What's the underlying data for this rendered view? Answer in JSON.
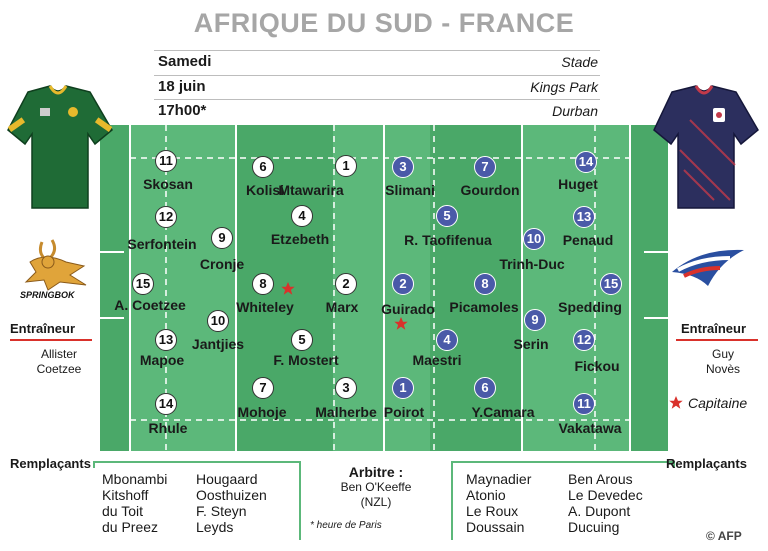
{
  "title": "AFRIQUE DU SUD - FRANCE",
  "info": [
    {
      "left": "Samedi",
      "right": "Stade"
    },
    {
      "left": "18 juin",
      "right": "Kings Park"
    },
    {
      "left": "17h00*",
      "right": "Durban"
    }
  ],
  "home": {
    "logo_text": "SPRINGBOK",
    "coach_label": "Entraîneur",
    "coach_lines": [
      "Allister",
      "Coetzee"
    ],
    "subs_label": "Remplaçants",
    "subs_col1": [
      "Mbonambi",
      "Kitshoff",
      "du Toit",
      "du Preez"
    ],
    "subs_col2": [
      "Hougaard",
      "Oosthuizen",
      "F. Steyn",
      "Leyds"
    ]
  },
  "away": {
    "coach_label": "Entraîneur",
    "coach_lines": [
      "Guy",
      "Novès"
    ],
    "captain_label": "Capitaine",
    "subs_label": "Remplaçants",
    "subs_col1": [
      "Maynadier",
      "Atonio",
      "Le Roux",
      "Doussain"
    ],
    "subs_col2": [
      "Ben Arous",
      "Le Devedec",
      "A. Dupont",
      "Ducuing"
    ]
  },
  "referee": {
    "label": "Arbitre :",
    "name": "Ben O'Keeffe",
    "country": "(NZL)"
  },
  "footnote": "* heure de Paris",
  "credit": "© AFP",
  "colors": {
    "pitch_light": "#5cb87a",
    "pitch_dark": "#4aa868",
    "france_blue": "#4a5aa8",
    "captain_red": "#d9312b"
  },
  "players_home": [
    {
      "n": "11",
      "name": "Skosan"
    },
    {
      "n": "6",
      "name": "Kolisi"
    },
    {
      "n": "1",
      "name": "Mtawarira"
    },
    {
      "n": "12",
      "name": "Serfontein"
    },
    {
      "n": "4",
      "name": "Etzebeth"
    },
    {
      "n": "9",
      "name": "Cronje"
    },
    {
      "n": "15",
      "name": "A. Coetzee"
    },
    {
      "n": "8",
      "name": "Whiteley"
    },
    {
      "n": "2",
      "name": "Marx"
    },
    {
      "n": "10",
      "name": "Jantjies"
    },
    {
      "n": "13",
      "name": "Mapoe"
    },
    {
      "n": "5",
      "name": "F. Mostert"
    },
    {
      "n": "7",
      "name": "Mohoje"
    },
    {
      "n": "3",
      "name": "Malherbe"
    },
    {
      "n": "14",
      "name": "Rhule"
    }
  ],
  "players_away": [
    {
      "n": "3",
      "name": "Slimani"
    },
    {
      "n": "7",
      "name": "Gourdon"
    },
    {
      "n": "14",
      "name": "Huget"
    },
    {
      "n": "5",
      "name": "R. Taofifenua"
    },
    {
      "n": "13",
      "name": "Penaud"
    },
    {
      "n": "10",
      "name": "Trinh-Duc"
    },
    {
      "n": "2",
      "name": "Guirado"
    },
    {
      "n": "8",
      "name": "Picamoles"
    },
    {
      "n": "15",
      "name": "Spedding"
    },
    {
      "n": "9",
      "name": "Serin"
    },
    {
      "n": "4",
      "name": "Maestri"
    },
    {
      "n": "12",
      "name": "Fickou"
    },
    {
      "n": "1",
      "name": "Poirot"
    },
    {
      "n": "6",
      "name": "Y.Camara"
    },
    {
      "n": "11",
      "name": "Vakatawa"
    }
  ]
}
